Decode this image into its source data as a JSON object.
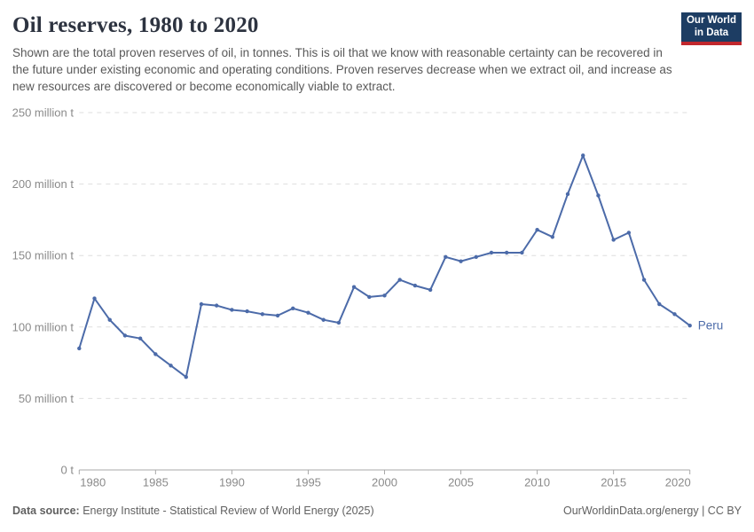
{
  "header": {
    "title": "Oil reserves, 1980 to 2020",
    "subtitle": "Shown are the total proven reserves of oil, in tonnes. This is oil that we know with reasonable certainty can be recovered in the future under existing economic and operating conditions. Proven reserves decrease when we extract oil, and increase as new resources are discovered or become economically viable to extract.",
    "logo": {
      "line1": "Our World",
      "line2": "in Data",
      "bg_color": "#1d3d63",
      "stripe_color": "#c1272d"
    }
  },
  "chart_data": {
    "type": "line",
    "title": "Oil reserves, 1980 to 2020",
    "xlabel": "",
    "ylabel": "",
    "unit": "tonnes",
    "grid": "horizontal-dashed",
    "legend_position": "end-of-line-label",
    "ylim": [
      0,
      250
    ],
    "yticks": [
      {
        "value": 0,
        "label": "0 t"
      },
      {
        "value": 50,
        "label": "50 million t"
      },
      {
        "value": 100,
        "label": "100 million t"
      },
      {
        "value": 150,
        "label": "150 million t"
      },
      {
        "value": 200,
        "label": "200 million t"
      },
      {
        "value": 250,
        "label": "250 million t"
      }
    ],
    "xticks": [
      1980,
      1985,
      1990,
      1995,
      2000,
      2005,
      2010,
      2015,
      2020
    ],
    "x": [
      1980,
      1981,
      1982,
      1983,
      1984,
      1985,
      1986,
      1987,
      1988,
      1989,
      1990,
      1991,
      1992,
      1993,
      1994,
      1995,
      1996,
      1997,
      1998,
      1999,
      2000,
      2001,
      2002,
      2003,
      2004,
      2005,
      2006,
      2007,
      2008,
      2009,
      2010,
      2011,
      2012,
      2013,
      2014,
      2015,
      2016,
      2017,
      2018,
      2019,
      2020
    ],
    "series": [
      {
        "name": "Peru",
        "color": "#4c6ba9",
        "values": [
          85,
          120,
          105,
          94,
          92,
          81,
          73,
          65,
          116,
          115,
          112,
          111,
          109,
          108,
          113,
          110,
          105,
          103,
          128,
          121,
          122,
          133,
          129,
          126,
          149,
          146,
          149,
          152,
          152,
          152,
          168,
          163,
          193,
          220,
          192,
          161,
          166,
          133,
          116,
          109,
          101
        ]
      }
    ]
  },
  "footer": {
    "datasource_label": "Data source:",
    "datasource": "Energy Institute - Statistical Review of World Energy (2025)",
    "right": "OurWorldinData.org/energy | CC BY"
  }
}
